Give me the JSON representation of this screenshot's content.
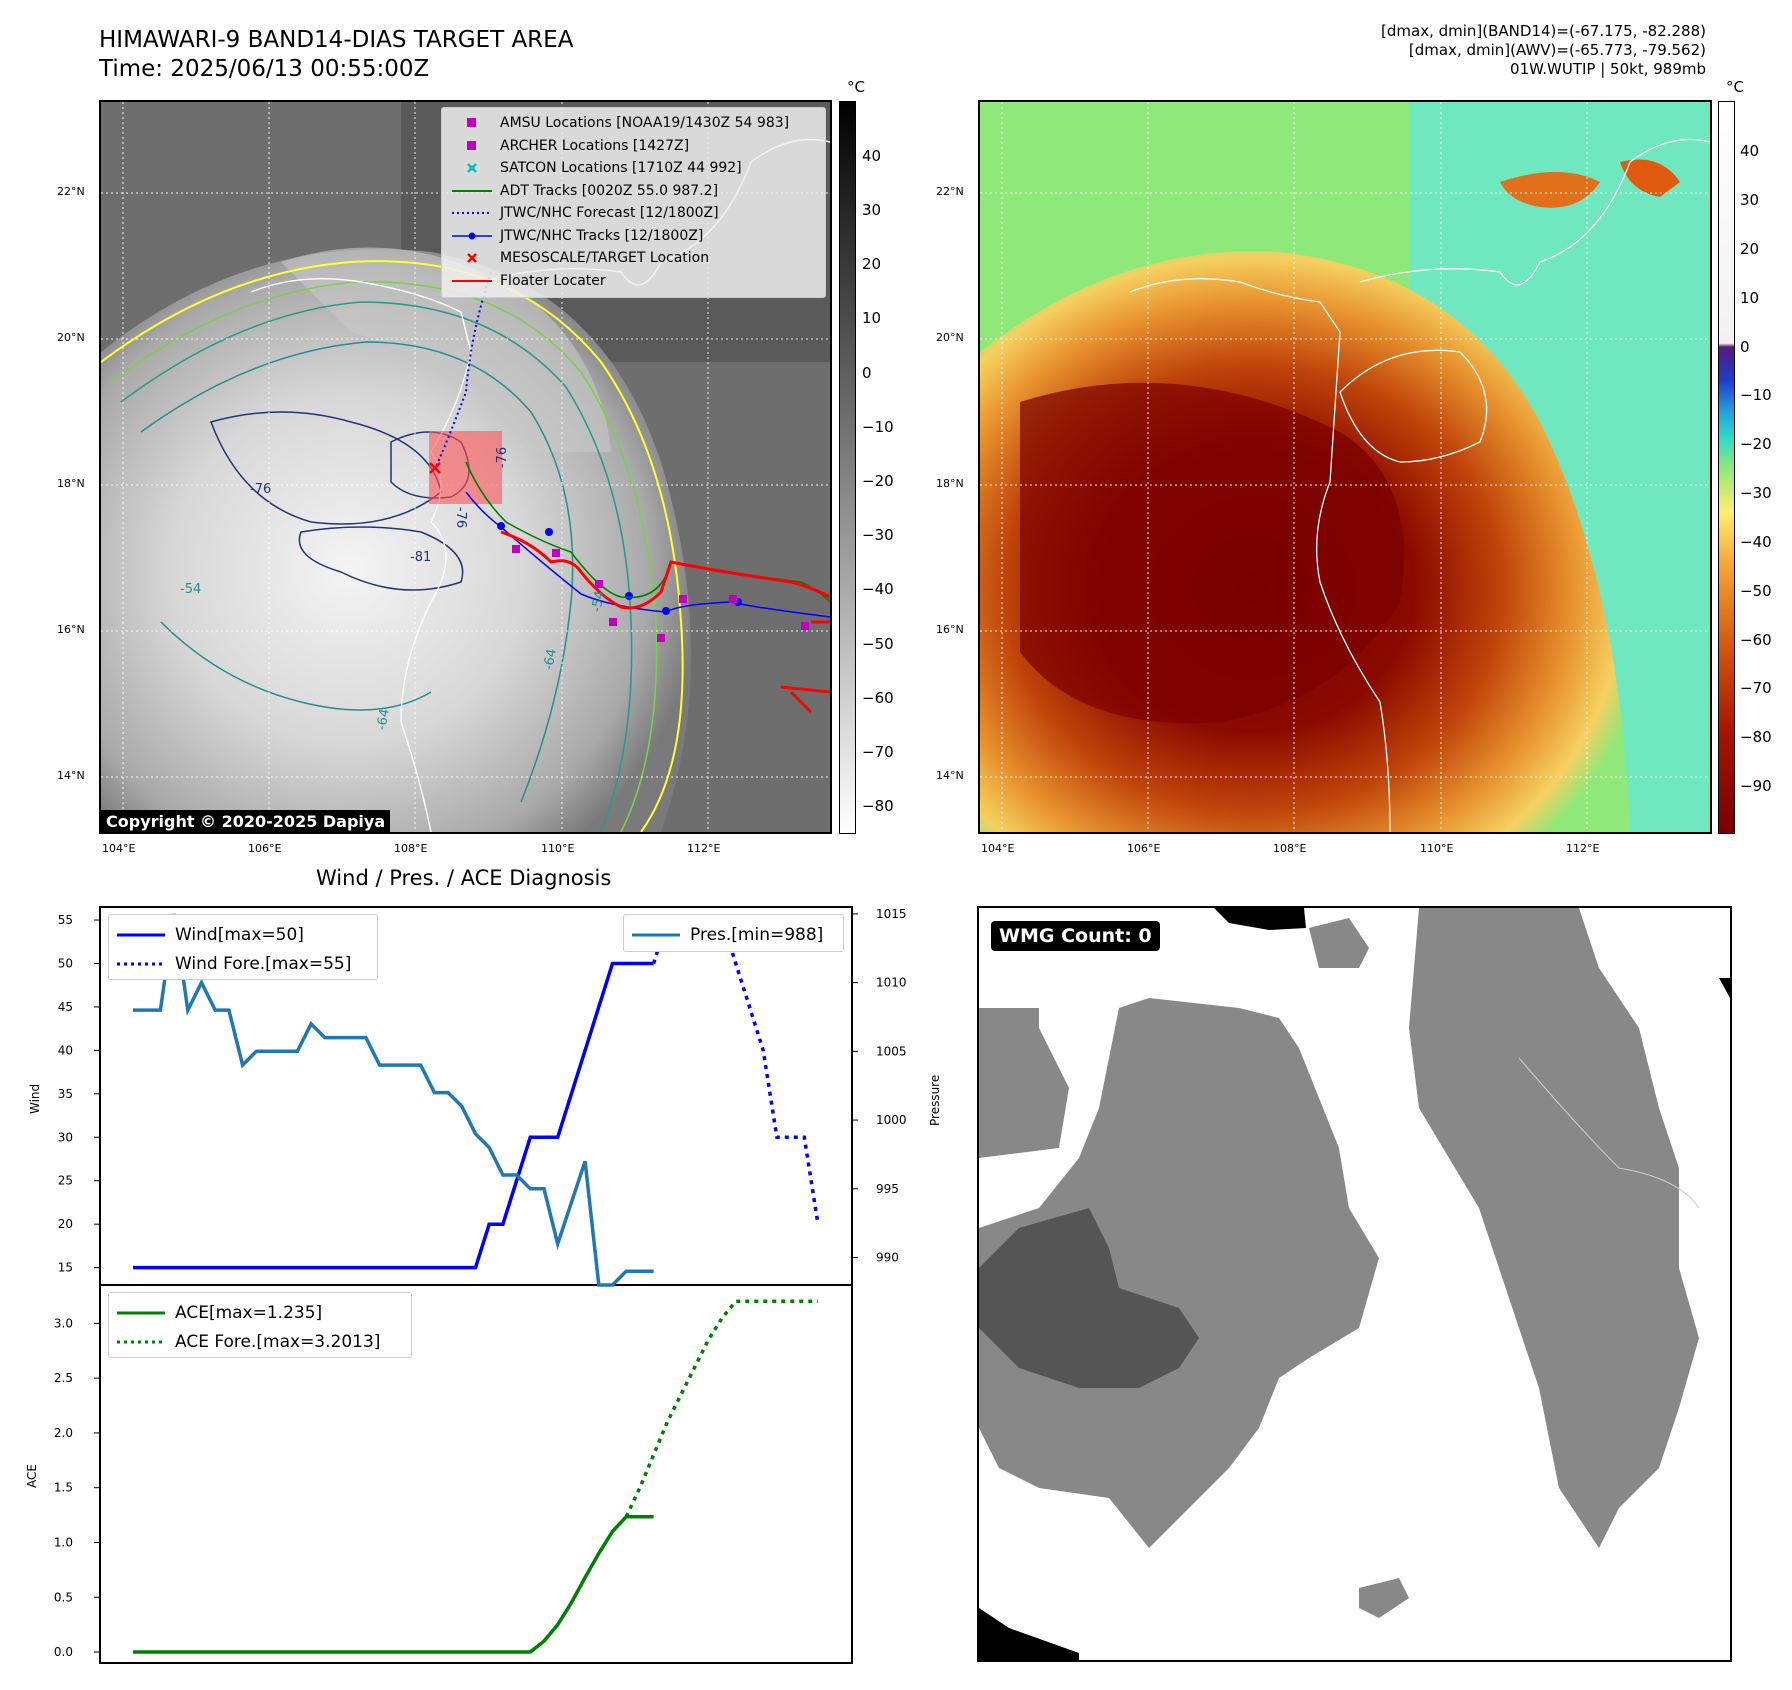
{
  "header": {
    "title_line1": "HIMAWARI-9 BAND14-DIAS TARGET AREA",
    "title_line2": "Time: 2025/06/13 00:55:00Z",
    "right_line1": "[dmax, dmin](BAND14)=(-67.175, -82.288)",
    "right_line2": "[dmax, dmin](AWV)=(-65.773, -79.562)",
    "right_line3": "01W.WUTIP | 50kt, 989mb"
  },
  "map": {
    "lat_labels": [
      "22°N",
      "20°N",
      "18°N",
      "16°N",
      "14°N"
    ],
    "lon_labels": [
      "104°E",
      "106°E",
      "108°E",
      "110°E",
      "112°E"
    ],
    "copyright": "Copyright © 2020-2025 Dapiya",
    "contour_labels": [
      "-76",
      "-76",
      "-76",
      "-81",
      "-54",
      "-64",
      "-64",
      "-54"
    ],
    "colors": {
      "land_line": "#ffffff",
      "track_red": "#ff0000",
      "jtwc_blue": "#0000ff",
      "adt_green": "#008000",
      "amsu_magenta": "#bf00bf",
      "satcon_cyan": "#00bfbf"
    }
  },
  "legend": {
    "items": [
      {
        "label": "AMSU Locations [NOAA19/1430Z 54 983]",
        "icon": "magenta-square"
      },
      {
        "label": "ARCHER Locations [1427Z]",
        "icon": "magenta-square"
      },
      {
        "label": "SATCON Locations [1710Z 44 992]",
        "icon": "cyan-x"
      },
      {
        "label": "ADT Tracks [0020Z 55.0 987.2]",
        "icon": "green-line"
      },
      {
        "label": "JTWC/NHC Forecast [12/1800Z]",
        "icon": "blue-dotted-line"
      },
      {
        "label": "JTWC/NHC Tracks [12/1800Z]",
        "icon": "blue-line-dot"
      },
      {
        "label": "MESOSCALE/TARGET Location",
        "icon": "red-x"
      },
      {
        "label": "Floater Locater",
        "icon": "red-line"
      }
    ]
  },
  "colorbar_left": {
    "unit": "°C",
    "ticks": [
      "40",
      "30",
      "20",
      "10",
      "0",
      "−10",
      "−20",
      "−30",
      "−40",
      "−50",
      "−60",
      "−70",
      "−80"
    ]
  },
  "colorbar_right": {
    "unit": "°C",
    "ticks": [
      "40",
      "30",
      "20",
      "10",
      "0",
      "−10",
      "−20",
      "−30",
      "−40",
      "−50",
      "−60",
      "−70",
      "−80",
      "−90"
    ]
  },
  "diag": {
    "title": "Wind / Pres. / ACE Diagnosis",
    "wind_label": "Wind",
    "pressure_label": "Pressure",
    "ace_label": "ACE",
    "legend_wind": "Wind[max=50]",
    "legend_wind_fore": "Wind Fore.[max=55]",
    "legend_pres": "Pres.[min=988]",
    "legend_ace": "ACE[max=1.235]",
    "legend_ace_fore": "ACE Fore.[max=3.2013]"
  },
  "wmg": {
    "label": "WMG Count: 0"
  },
  "chart_data": [
    {
      "type": "line",
      "title": "Wind / Pres. / ACE Diagnosis",
      "ylabel": "Wind",
      "ylim": [
        13,
        56.5
      ],
      "series": [
        {
          "name": "Wind[max=50]",
          "color": "#0000ff",
          "style": "solid",
          "x": [
            0,
            1,
            2,
            3,
            4,
            5,
            6,
            7,
            8,
            9,
            10,
            11,
            12,
            13,
            14,
            15,
            16,
            17,
            18,
            19,
            20,
            21,
            22,
            23,
            24,
            25,
            26,
            27,
            28,
            29,
            30,
            31,
            32,
            33,
            34,
            35,
            36,
            37,
            38
          ],
          "values": [
            15,
            15,
            15,
            15,
            15,
            15,
            15,
            15,
            15,
            15,
            15,
            15,
            15,
            15,
            15,
            15,
            15,
            15,
            15,
            15,
            15,
            15,
            15,
            15,
            15,
            15,
            20,
            20,
            25,
            30,
            30,
            30,
            35,
            40,
            45,
            50,
            50,
            50,
            50
          ]
        },
        {
          "name": "Wind Fore.[max=55]",
          "color": "#0000ff",
          "style": "dotted",
          "x": [
            38,
            39,
            40,
            41,
            42,
            43,
            44,
            45,
            46,
            47,
            48,
            49,
            50
          ],
          "values": [
            50,
            55,
            55,
            55,
            55,
            55,
            50,
            45,
            40,
            30,
            30,
            30,
            20
          ]
        }
      ]
    },
    {
      "type": "line",
      "ylabel": "Pressure",
      "ylim": [
        988,
        1015.5
      ],
      "series": [
        {
          "name": "Pres.[min=988]",
          "color": "#1f77b4",
          "style": "solid",
          "x": [
            0,
            1,
            2,
            3,
            4,
            5,
            6,
            7,
            8,
            9,
            10,
            11,
            12,
            13,
            14,
            15,
            16,
            17,
            18,
            19,
            20,
            21,
            22,
            23,
            24,
            25,
            26,
            27,
            28,
            29,
            30,
            31,
            32,
            33,
            34,
            35,
            36,
            37,
            38
          ],
          "values": [
            1008,
            1008,
            1008,
            1015,
            1008,
            1010,
            1008,
            1008,
            1004,
            1005,
            1005,
            1005,
            1005,
            1007,
            1006,
            1006,
            1006,
            1006,
            1004,
            1004,
            1004,
            1004,
            1002,
            1002,
            1001,
            999,
            998,
            996,
            996,
            995,
            995,
            991,
            994,
            997,
            988,
            988,
            989,
            989,
            989
          ]
        }
      ]
    },
    {
      "type": "line",
      "ylabel": "ACE",
      "ylim": [
        -0.1,
        3.35
      ],
      "series": [
        {
          "name": "ACE[max=1.235]",
          "color": "#008000",
          "style": "solid",
          "x": [
            0,
            1,
            2,
            3,
            4,
            5,
            6,
            7,
            8,
            9,
            10,
            11,
            12,
            13,
            14,
            15,
            16,
            17,
            18,
            19,
            20,
            21,
            22,
            23,
            24,
            25,
            26,
            27,
            28,
            29,
            30,
            31,
            32,
            33,
            34,
            35,
            36,
            37,
            38
          ],
          "values": [
            0,
            0,
            0,
            0,
            0,
            0,
            0,
            0,
            0,
            0,
            0,
            0,
            0,
            0,
            0,
            0,
            0,
            0,
            0,
            0,
            0,
            0,
            0,
            0,
            0,
            0,
            0,
            0,
            0,
            0,
            0.1,
            0.25,
            0.45,
            0.68,
            0.9,
            1.1,
            1.235,
            1.235,
            1.235
          ]
        },
        {
          "name": "ACE Fore.[max=3.2013]",
          "color": "#008000",
          "style": "dotted",
          "x": [
            36,
            37,
            38,
            39,
            40,
            41,
            42,
            43,
            44,
            45,
            46,
            47,
            48,
            49,
            50
          ],
          "values": [
            1.235,
            1.5,
            1.8,
            2.1,
            2.35,
            2.6,
            2.85,
            3.05,
            3.2013,
            3.2013,
            3.2013,
            3.2013,
            3.2013,
            3.2013,
            3.2013
          ]
        }
      ]
    }
  ]
}
